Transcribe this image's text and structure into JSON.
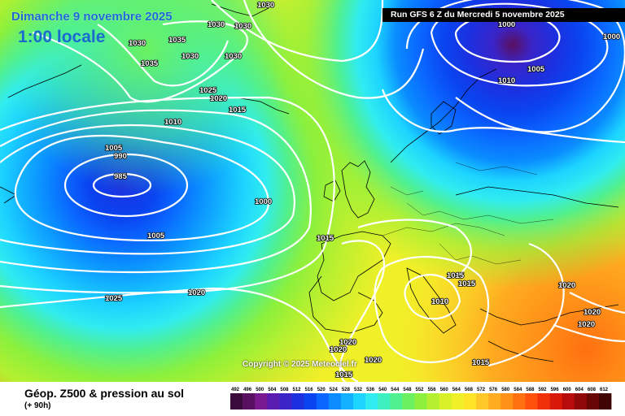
{
  "header": {
    "date_title": "Dimanche 9 novembre 2025",
    "time_label": "1:00 locale",
    "run_info": "Run GFS 6 Z du Mercredi 5 novembre 2025"
  },
  "footer": {
    "title": "Géop. Z500 & pression au sol",
    "subtitle": "(+ 90h)",
    "copyright": "Copyright © 2025 Meteociel.fr"
  },
  "legend": {
    "ticks": [
      "492",
      "496",
      "500",
      "504",
      "508",
      "512",
      "516",
      "520",
      "524",
      "528",
      "532",
      "536",
      "540",
      "544",
      "548",
      "552",
      "556",
      "560",
      "564",
      "568",
      "572",
      "576",
      "580",
      "584",
      "588",
      "592",
      "596",
      "600",
      "604",
      "608",
      "612"
    ],
    "colors": [
      "#3a0a3a",
      "#5a1060",
      "#7a1a90",
      "#5a1cb0",
      "#3a24c8",
      "#1c30e0",
      "#0a44f0",
      "#0a66ff",
      "#0a8cff",
      "#12b0ff",
      "#1cd4ff",
      "#30ecf0",
      "#3cf0c0",
      "#50f090",
      "#6af060",
      "#8cf03c",
      "#b4f030",
      "#d8f028",
      "#f0f028",
      "#ffe428",
      "#ffc828",
      "#ffac20",
      "#ff9018",
      "#ff7010",
      "#ff500c",
      "#f03008",
      "#d81808",
      "#b80c0c",
      "#900808",
      "#680606",
      "#400404"
    ]
  },
  "isobars": {
    "labels": [
      {
        "text": "1030"
      },
      {
        "text": "1030"
      },
      {
        "text": "1030"
      },
      {
        "text": "1030"
      },
      {
        "text": "1035"
      },
      {
        "text": "1035"
      },
      {
        "text": "1030"
      },
      {
        "text": "1030"
      },
      {
        "text": "1025"
      },
      {
        "text": "1020"
      },
      {
        "text": "1015"
      },
      {
        "text": "1010"
      },
      {
        "text": "1005"
      },
      {
        "text": "990"
      },
      {
        "text": "985"
      },
      {
        "text": "1000"
      },
      {
        "text": "1005"
      },
      {
        "text": "1015"
      },
      {
        "text": "1020"
      },
      {
        "text": "1025"
      },
      {
        "text": "1000"
      },
      {
        "text": "1000"
      },
      {
        "text": "1005"
      },
      {
        "text": "1010"
      },
      {
        "text": "1015"
      },
      {
        "text": "1015"
      },
      {
        "text": "1010"
      },
      {
        "text": "1020"
      },
      {
        "text": "1020"
      },
      {
        "text": "1020"
      },
      {
        "text": "1020"
      },
      {
        "text": "1020"
      },
      {
        "text": "1015"
      },
      {
        "text": "1015"
      }
    ]
  }
}
